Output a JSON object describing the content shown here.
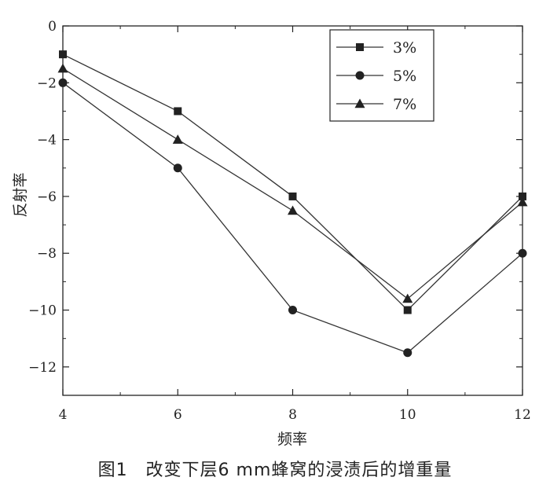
{
  "caption": "图1　改变下层6 mm蜂窝的浸渍后的增重量",
  "chart_data": {
    "type": "line",
    "xlabel": "频率",
    "ylabel": "反射率",
    "xlim": [
      4,
      12
    ],
    "ylim": [
      -13,
      0
    ],
    "x_ticks": [
      4,
      6,
      8,
      10,
      12
    ],
    "x_tick_labels": [
      "4",
      "6",
      "8",
      "10",
      "12"
    ],
    "y_ticks": [
      0,
      -2,
      -4,
      -6,
      -8,
      -10,
      -12
    ],
    "y_tick_labels": [
      "0",
      "−2",
      "−4",
      "−6",
      "−8",
      "−10",
      "−12"
    ],
    "x": [
      4,
      6,
      8,
      10,
      12
    ],
    "series": [
      {
        "name": "3%",
        "marker": "square",
        "values": [
          -1.0,
          -3.0,
          -6.0,
          -10.0,
          -6.0
        ]
      },
      {
        "name": "5%",
        "marker": "circle",
        "values": [
          -2.0,
          -5.0,
          -10.0,
          -11.5,
          -8.0
        ]
      },
      {
        "name": "7%",
        "marker": "triangle",
        "values": [
          -1.5,
          -4.0,
          -6.5,
          -9.6,
          -6.2
        ]
      }
    ],
    "grid": false,
    "legend_position": "top-right",
    "colors": {
      "line": "#333333",
      "marker": "#222222",
      "axis": "#222222"
    }
  }
}
